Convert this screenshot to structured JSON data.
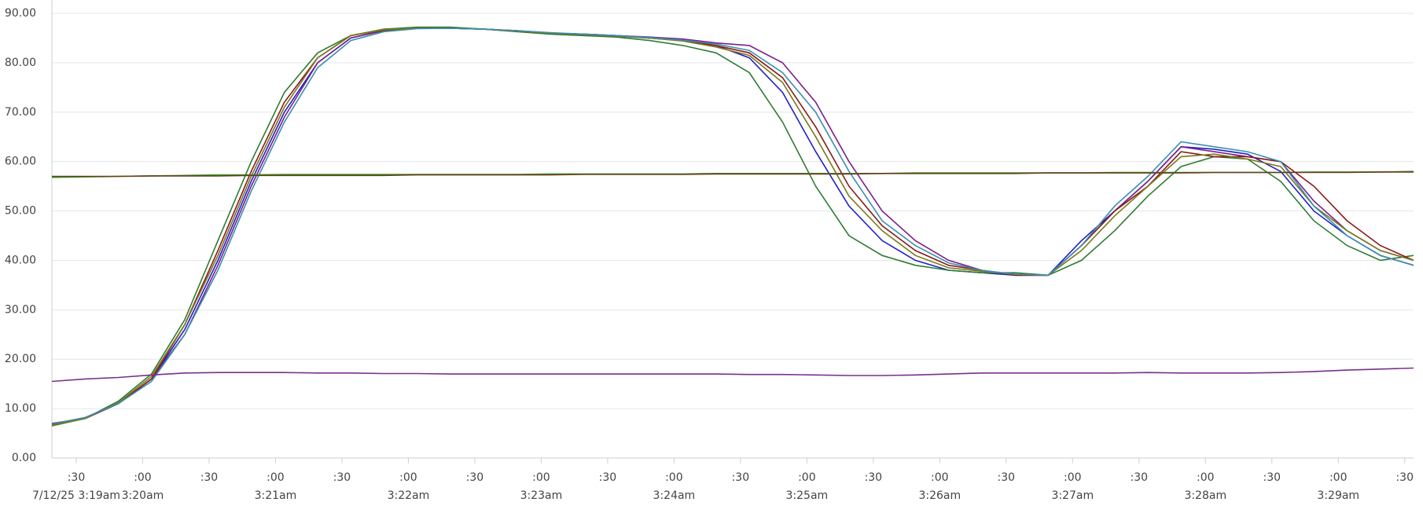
{
  "chart_data": {
    "type": "line",
    "x": [
      19,
      34,
      49,
      64,
      79,
      94,
      109,
      124,
      139,
      154,
      169,
      184,
      199,
      214,
      229,
      244,
      259,
      274,
      289,
      304,
      319,
      334,
      349,
      364,
      379,
      394,
      409,
      424,
      439,
      454,
      469,
      484,
      499,
      514,
      529,
      544,
      559,
      574,
      589,
      604,
      619,
      634
    ],
    "xlim": [
      19,
      634
    ],
    "xticks": [
      {
        "value": 30,
        "label": ":30"
      },
      {
        "value": 60,
        "label": ":00"
      },
      {
        "value": 90,
        "label": ":30"
      },
      {
        "value": 120,
        "label": ":00"
      },
      {
        "value": 150,
        "label": ":30"
      },
      {
        "value": 180,
        "label": ":00"
      },
      {
        "value": 210,
        "label": ":30"
      },
      {
        "value": 240,
        "label": ":00"
      },
      {
        "value": 270,
        "label": ":30"
      },
      {
        "value": 300,
        "label": ":00"
      },
      {
        "value": 330,
        "label": ":30"
      },
      {
        "value": 360,
        "label": ":00"
      },
      {
        "value": 390,
        "label": ":30"
      },
      {
        "value": 420,
        "label": ":00"
      },
      {
        "value": 450,
        "label": ":30"
      },
      {
        "value": 480,
        "label": ":00"
      },
      {
        "value": 510,
        "label": ":30"
      },
      {
        "value": 540,
        "label": ":00"
      },
      {
        "value": 570,
        "label": ":30"
      },
      {
        "value": 600,
        "label": ":00"
      },
      {
        "value": 630,
        "label": ":30"
      }
    ],
    "xdate_ticks": [
      {
        "value": 30,
        "label": "7/12/25 3:19am"
      },
      {
        "value": 60,
        "label": "3:20am"
      },
      {
        "value": 120,
        "label": "3:21am"
      },
      {
        "value": 180,
        "label": "3:22am"
      },
      {
        "value": 240,
        "label": "3:23am"
      },
      {
        "value": 300,
        "label": "3:24am"
      },
      {
        "value": 360,
        "label": "3:25am"
      },
      {
        "value": 420,
        "label": "3:26am"
      },
      {
        "value": 480,
        "label": "3:27am"
      },
      {
        "value": 540,
        "label": "3:28am"
      },
      {
        "value": 600,
        "label": "3:29am"
      }
    ],
    "ylim": [
      0,
      90
    ],
    "yticks": [
      {
        "value": 0,
        "label": "0.00"
      },
      {
        "value": 10,
        "label": "10.00"
      },
      {
        "value": 20,
        "label": "20.00"
      },
      {
        "value": 30,
        "label": "30.00"
      },
      {
        "value": 40,
        "label": "40.00"
      },
      {
        "value": 50,
        "label": "50.00"
      },
      {
        "value": 60,
        "label": "60.00"
      },
      {
        "value": 70,
        "label": "70.00"
      },
      {
        "value": 80,
        "label": "80.00"
      },
      {
        "value": 90,
        "label": "90.00"
      }
    ],
    "grid": true,
    "series": [
      {
        "color": "#1f1fc8",
        "values": [
          7,
          8,
          11,
          16,
          26,
          40,
          56,
          70,
          80,
          85,
          86.5,
          87,
          87,
          86.8,
          86.5,
          86,
          85.8,
          85.5,
          85,
          84.5,
          83.5,
          81,
          74,
          62,
          51,
          44,
          40,
          38,
          37.5,
          37,
          37,
          44,
          50,
          56,
          63,
          62.5,
          61.5,
          58,
          50,
          45,
          41,
          39
        ]
      },
      {
        "color": "#7a1f8c",
        "values": [
          7,
          8,
          11,
          16,
          25,
          39,
          55,
          69,
          80,
          85,
          86.5,
          87,
          87,
          86.8,
          86.5,
          86,
          85.8,
          85.5,
          85.2,
          84.8,
          84,
          83.5,
          80,
          72,
          60,
          50,
          44,
          40,
          38,
          37,
          37,
          43,
          50,
          56,
          63,
          62,
          61,
          60,
          52,
          46,
          42,
          40
        ]
      },
      {
        "color": "#2e7d32",
        "values": [
          6.5,
          8,
          11.5,
          17,
          28,
          44,
          60,
          74,
          82,
          85.5,
          86.8,
          87.2,
          87.2,
          86.8,
          86.3,
          85.8,
          85.5,
          85.2,
          84.5,
          83.5,
          82,
          78,
          68,
          55,
          45,
          41,
          39,
          38,
          37.5,
          37.5,
          37,
          40,
          46,
          53,
          59,
          61,
          60.5,
          56,
          48,
          43,
          40,
          41
        ]
      },
      {
        "color": "#8b1a1a",
        "values": [
          6.8,
          8,
          11,
          16,
          27,
          42,
          58,
          72,
          81,
          85.5,
          86.6,
          87,
          87,
          86.8,
          86.4,
          86,
          85.7,
          85.4,
          85,
          84.5,
          83.5,
          82,
          77,
          67,
          55,
          47,
          42,
          39,
          38,
          37,
          37,
          43,
          50,
          55,
          62,
          61,
          61,
          60,
          55,
          48,
          43,
          40
        ]
      },
      {
        "color": "#7a7a1a",
        "values": [
          6.6,
          8,
          11.2,
          16.5,
          27,
          41,
          57,
          71,
          81,
          85.5,
          86.7,
          87,
          87,
          86.8,
          86.4,
          86,
          85.7,
          85.4,
          85,
          84.4,
          83.2,
          81.5,
          76,
          65,
          53,
          46,
          41,
          38.5,
          37.8,
          37.2,
          37,
          42,
          49,
          55,
          61,
          61.5,
          60.5,
          59,
          51,
          46,
          42,
          40
        ]
      },
      {
        "color": "#3a8fb0",
        "values": [
          6.9,
          8.2,
          11,
          15.5,
          25,
          38,
          54,
          68,
          79,
          84.5,
          86.3,
          86.9,
          87,
          86.8,
          86.5,
          86.1,
          85.8,
          85.5,
          85.1,
          84.6,
          83.8,
          82.5,
          78,
          70,
          58,
          48,
          43,
          39.5,
          38,
          37.2,
          37,
          43,
          51,
          57,
          64,
          63,
          62,
          60,
          51,
          45,
          41,
          39
        ]
      },
      {
        "color": "#2fa82f",
        "values": [
          56.8,
          56.9,
          57,
          57.1,
          57.2,
          57.3,
          57.3,
          57.4,
          57.4,
          57.4,
          57.4,
          57.4,
          57.4,
          57.4,
          57.4,
          57.5,
          57.5,
          57.5,
          57.5,
          57.5,
          57.6,
          57.6,
          57.6,
          57.6,
          57.6,
          57.6,
          57.7,
          57.7,
          57.7,
          57.7,
          57.7,
          57.7,
          57.8,
          57.8,
          57.8,
          57.8,
          57.8,
          57.8,
          57.9,
          57.9,
          57.9,
          58
        ]
      },
      {
        "color": "#6b3a1a",
        "values": [
          57,
          57,
          57,
          57.1,
          57.1,
          57.1,
          57.2,
          57.2,
          57.2,
          57.2,
          57.2,
          57.3,
          57.3,
          57.3,
          57.3,
          57.3,
          57.4,
          57.4,
          57.4,
          57.4,
          57.5,
          57.5,
          57.5,
          57.5,
          57.5,
          57.6,
          57.6,
          57.6,
          57.6,
          57.6,
          57.7,
          57.7,
          57.7,
          57.7,
          57.7,
          57.8,
          57.8,
          57.8,
          57.8,
          57.8,
          57.9,
          57.9
        ]
      },
      {
        "color": "#7a2f8c",
        "values": [
          15.5,
          16,
          16.3,
          16.8,
          17.2,
          17.3,
          17.3,
          17.3,
          17.2,
          17.2,
          17.1,
          17.1,
          17,
          17,
          17,
          17,
          17,
          17,
          17,
          17,
          17,
          16.9,
          16.9,
          16.8,
          16.7,
          16.7,
          16.8,
          17,
          17.2,
          17.2,
          17.2,
          17.2,
          17.2,
          17.3,
          17.2,
          17.2,
          17.2,
          17.3,
          17.5,
          17.8,
          18,
          18.2
        ]
      }
    ]
  }
}
